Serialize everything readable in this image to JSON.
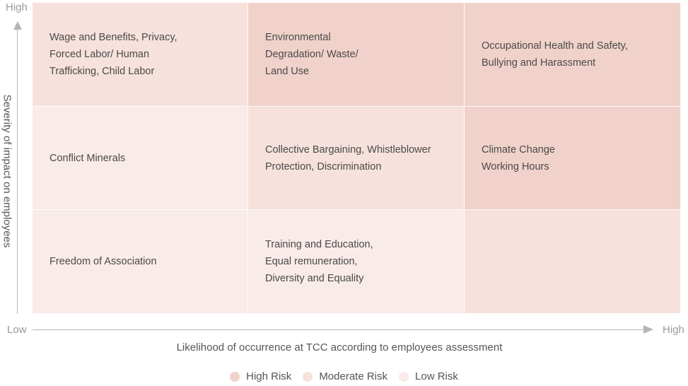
{
  "colors": {
    "high_risk": "#f0d2ca",
    "moderate_risk": "#f6e1dc",
    "low_risk": "#f8ebe8",
    "axis": "#b5b5b5"
  },
  "axes": {
    "y_high": "High",
    "x_low": "Low",
    "x_high": "High",
    "y_title": "Severity of impact on employees",
    "x_title": "Likelihood of occurrence at TCC according to employees assessment"
  },
  "matrix": {
    "rows": [
      {
        "cells": [
          {
            "risk": "moderate",
            "text": "Wage and Benefits, Privacy,\nForced Labor/ Human\nTrafficking, Child Labor"
          },
          {
            "risk": "high",
            "text": "Environmental\nDegradation/ Waste/\nLand Use"
          },
          {
            "risk": "high",
            "text": "Occupational Health and Safety,\nBullying and Harassment"
          }
        ]
      },
      {
        "cells": [
          {
            "risk": "low",
            "text": "Conflict Minerals"
          },
          {
            "risk": "moderate",
            "text": "Collective Bargaining, Whistleblower\nProtection, Discrimination"
          },
          {
            "risk": "high",
            "text": "Climate Change\nWorking Hours"
          }
        ]
      },
      {
        "cells": [
          {
            "risk": "low",
            "text": "Freedom of Association"
          },
          {
            "risk": "low",
            "text": "Training and Education,\nEqual remuneration,\nDiversity and Equality"
          },
          {
            "risk": "moderate",
            "text": ""
          }
        ]
      }
    ]
  },
  "legend": [
    {
      "label": "High Risk",
      "color": "#f0d2ca"
    },
    {
      "label": "Moderate Risk",
      "color": "#f6e1dc"
    },
    {
      "label": "Low Risk",
      "color": "#f8ebe8"
    }
  ]
}
